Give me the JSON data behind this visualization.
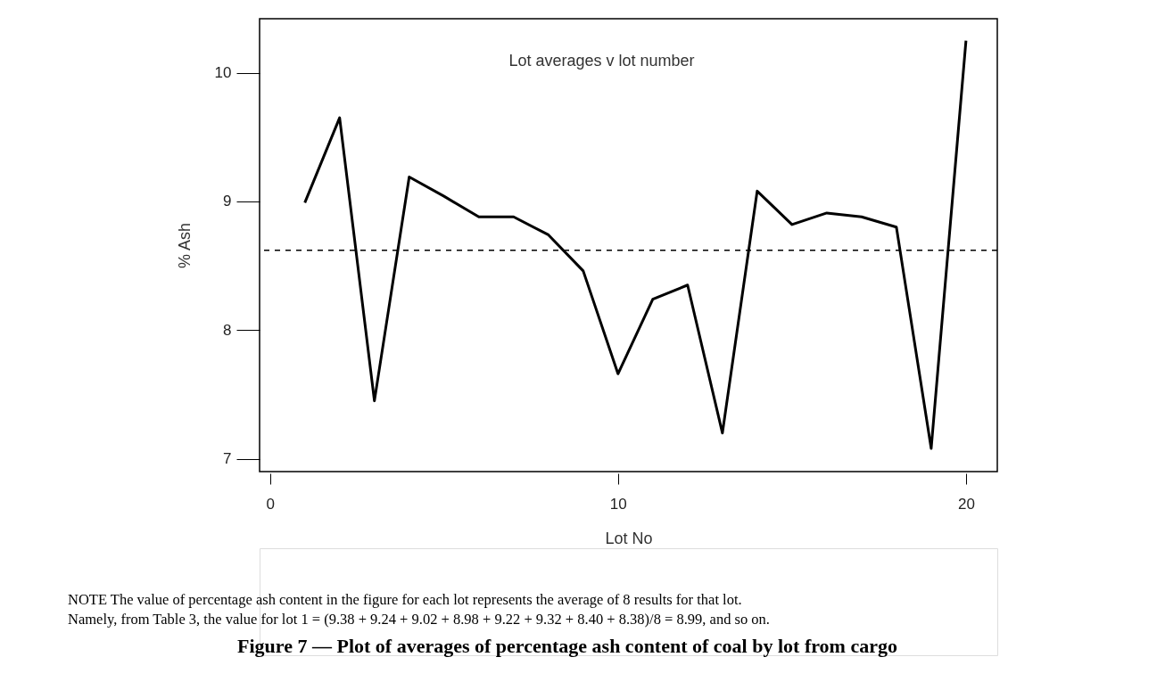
{
  "chart_data": {
    "type": "line",
    "title": "Lot averages v lot number",
    "xlabel": "Lot No",
    "ylabel": "% Ash",
    "x": [
      1,
      2,
      3,
      4,
      5,
      6,
      7,
      8,
      9,
      10,
      11,
      12,
      13,
      14,
      15,
      16,
      17,
      18,
      19,
      20
    ],
    "series": [
      {
        "color": "#000000",
        "values": [
          8.99,
          9.65,
          7.45,
          9.19,
          9.04,
          8.88,
          8.88,
          8.74,
          8.46,
          7.66,
          8.24,
          8.35,
          7.2,
          9.08,
          8.82,
          8.91,
          8.88,
          8.8,
          7.08,
          10.25
        ]
      }
    ],
    "xlim": [
      -0.3,
      20.9
    ],
    "ylim": [
      6.9,
      10.42
    ],
    "xticks": [
      0,
      10,
      20
    ],
    "yticks": [
      7,
      8,
      9,
      10
    ],
    "ref_lines": [
      {
        "axis": "y",
        "value": 8.62,
        "line_style": "dashed",
        "color": "#000000"
      }
    ],
    "grid": false,
    "marker": "none",
    "line_style": "solid",
    "annotations": [
      "NOTE    The value of percentage ash content in the figure for each lot represents the average of 8 results for that lot.",
      "Namely, from Table 3, the value for lot 1 = (9.38 + 9.24 + 9.02 + 8.98 + 9.22 + 9.32 + 8.40 + 8.38)/8 = 8.99, and so on.",
      "Figure 7 — Plot of averages of percentage ash content of coal by lot from cargo"
    ]
  }
}
